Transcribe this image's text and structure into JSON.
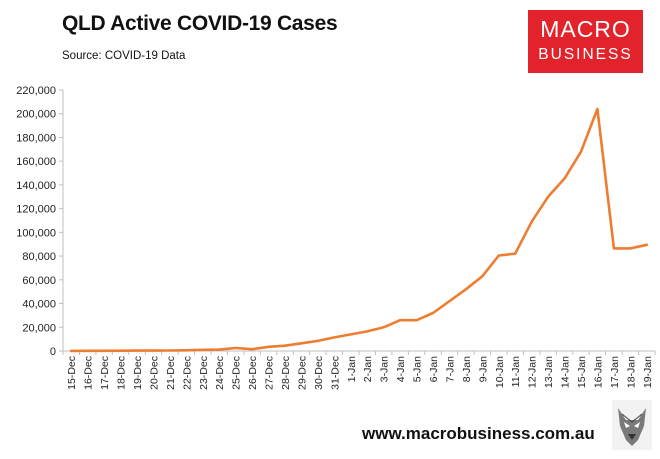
{
  "header": {
    "title": "QLD Active COVID-19 Cases",
    "source": "Source: COVID-19 Data"
  },
  "logo": {
    "line1": "MACRO",
    "line2": "BUSINESS"
  },
  "footer": {
    "website": "www.macrobusiness.com.au"
  },
  "colors": {
    "line": "#ed7d31",
    "logo": "#e3232b",
    "axis": "#bfbfbf"
  },
  "icons": {
    "logo": "macro-business-logo",
    "mascot": "wolf-icon"
  },
  "chart_data": {
    "type": "line",
    "title": "QLD Active COVID-19 Cases",
    "xlabel": "",
    "ylabel": "",
    "ylim": [
      0,
      220000
    ],
    "yticks": [
      0,
      20000,
      40000,
      60000,
      80000,
      100000,
      120000,
      140000,
      160000,
      180000,
      200000,
      220000
    ],
    "ytick_labels": [
      "0",
      "20,000",
      "40,000",
      "60,000",
      "80,000",
      "100,000",
      "120,000",
      "140,000",
      "160,000",
      "180,000",
      "200,000",
      "220,000"
    ],
    "grid": false,
    "categories": [
      "15-Dec",
      "16-Dec",
      "17-Dec",
      "18-Dec",
      "19-Dec",
      "20-Dec",
      "21-Dec",
      "22-Dec",
      "23-Dec",
      "24-Dec",
      "25-Dec",
      "26-Dec",
      "27-Dec",
      "28-Dec",
      "29-Dec",
      "30-Dec",
      "31-Dec",
      "1-Jan",
      "2-Jan",
      "3-Jan",
      "4-Jan",
      "5-Jan",
      "6-Jan",
      "7-Jan",
      "8-Jan",
      "9-Jan",
      "10-Jan",
      "11-Jan",
      "12-Jan",
      "13-Jan",
      "14-Jan",
      "15-Jan",
      "16-Jan",
      "17-Jan",
      "18-Jan",
      "19-Jan"
    ],
    "series": [
      {
        "name": "QLD Active COVID-19 Cases",
        "values": [
          100,
          150,
          200,
          250,
          300,
          350,
          400,
          600,
          1000,
          1200,
          2500,
          1500,
          3500,
          4500,
          6500,
          8500,
          11500,
          14000,
          16500,
          20000,
          26000,
          26000,
          32000,
          42000,
          52000,
          63000,
          80500,
          82000,
          109000,
          130000,
          145500,
          168000,
          204000,
          86500,
          86500,
          89500
        ]
      }
    ]
  }
}
